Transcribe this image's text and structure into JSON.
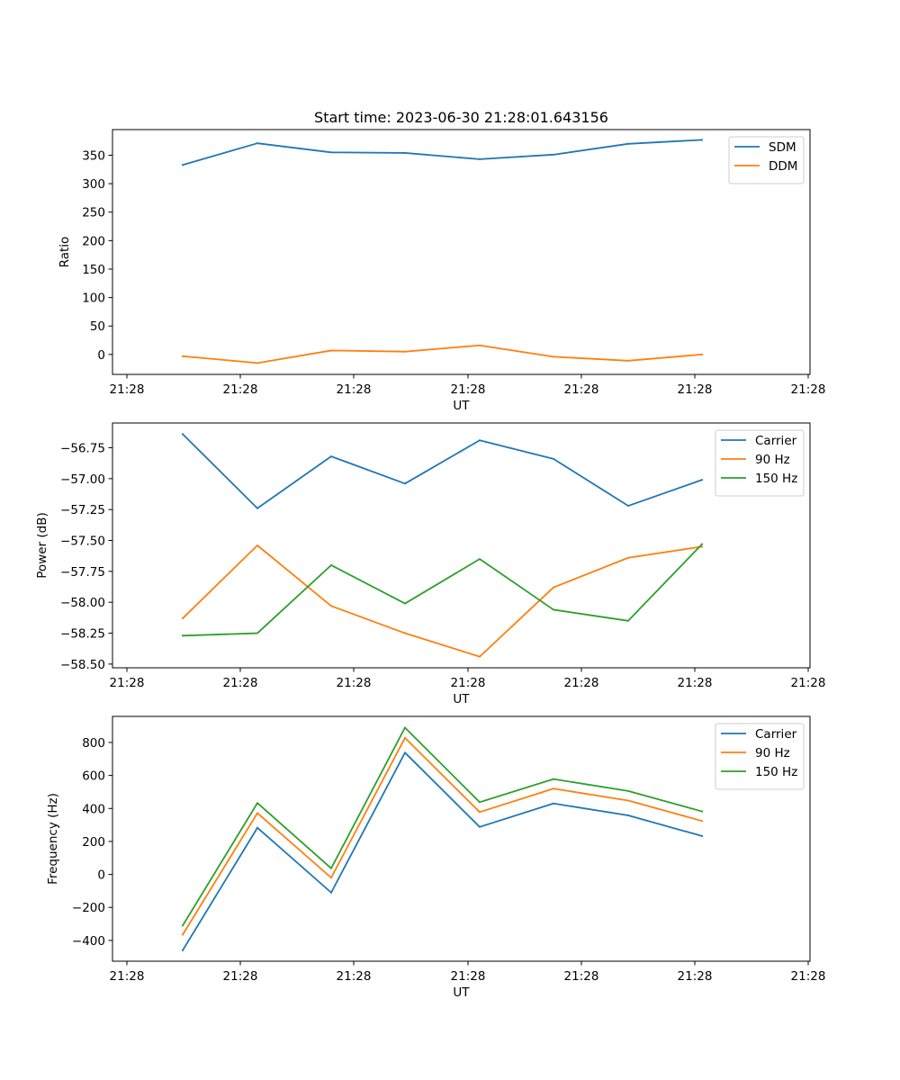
{
  "figure": {
    "title": "Start time: 2023-06-30 21:28:01.643156"
  },
  "chart_data": [
    {
      "type": "line",
      "xlabel": "UT",
      "ylabel": "Ratio",
      "x_tick_labels": [
        "21:28",
        "21:28",
        "21:28",
        "21:28",
        "21:28",
        "21:28",
        "21:28"
      ],
      "y_ticks": [
        0,
        50,
        100,
        150,
        200,
        250,
        300,
        350
      ],
      "y_tick_labels": [
        "0",
        "50",
        "100",
        "150",
        "200",
        "250",
        "300",
        "350"
      ],
      "ylim": [
        -35,
        395
      ],
      "grid": false,
      "legend_position": "top-right",
      "series": [
        {
          "name": "SDM",
          "color": "#1f77b4",
          "values": [
            333,
            371,
            355,
            354,
            343,
            351,
            370,
            377
          ]
        },
        {
          "name": "DDM",
          "color": "#ff7f0e",
          "values": [
            -3,
            -15,
            7,
            5,
            16,
            -4,
            -11,
            0
          ]
        }
      ]
    },
    {
      "type": "line",
      "xlabel": "UT",
      "ylabel": "Power (dB)",
      "x_tick_labels": [
        "21:28",
        "21:28",
        "21:28",
        "21:28",
        "21:28",
        "21:28",
        "21:28"
      ],
      "y_ticks": [
        -58.5,
        -58.25,
        -58.0,
        -57.75,
        -57.5,
        -57.25,
        -57.0,
        -56.75
      ],
      "y_tick_labels": [
        "−58.50",
        "−58.25",
        "−58.00",
        "−57.75",
        "−57.50",
        "−57.25",
        "−57.00",
        "−56.75"
      ],
      "ylim": [
        -58.53,
        -56.55
      ],
      "grid": false,
      "legend_position": "top-right",
      "series": [
        {
          "name": "Carrier",
          "color": "#1f77b4",
          "values": [
            -56.64,
            -57.24,
            -56.82,
            -57.04,
            -56.69,
            -56.84,
            -57.22,
            -57.01
          ]
        },
        {
          "name": "90 Hz",
          "color": "#ff7f0e",
          "values": [
            -58.13,
            -57.54,
            -58.03,
            -58.25,
            -58.44,
            -57.88,
            -57.64,
            -57.55
          ]
        },
        {
          "name": "150 Hz",
          "color": "#2ca02c",
          "values": [
            -58.27,
            -58.25,
            -57.7,
            -58.01,
            -57.65,
            -58.06,
            -58.15,
            -57.53
          ]
        }
      ]
    },
    {
      "type": "line",
      "xlabel": "UT",
      "ylabel": "Frequency (Hz)",
      "x_tick_labels": [
        "21:28",
        "21:28",
        "21:28",
        "21:28",
        "21:28",
        "21:28",
        "21:28"
      ],
      "y_ticks": [
        -400,
        -200,
        0,
        200,
        400,
        600,
        800
      ],
      "y_tick_labels": [
        "−400",
        "−200",
        "0",
        "200",
        "400",
        "600",
        "800"
      ],
      "ylim": [
        -526,
        958
      ],
      "grid": false,
      "legend_position": "top-right",
      "series": [
        {
          "name": "Carrier",
          "color": "#1f77b4",
          "values": [
            -460,
            283,
            -110,
            738,
            288,
            430,
            358,
            233
          ]
        },
        {
          "name": "90 Hz",
          "color": "#ff7f0e",
          "values": [
            -365,
            372,
            -20,
            828,
            378,
            520,
            448,
            324
          ]
        },
        {
          "name": "150 Hz",
          "color": "#2ca02c",
          "values": [
            -310,
            433,
            37,
            890,
            438,
            578,
            506,
            382
          ]
        }
      ]
    }
  ]
}
